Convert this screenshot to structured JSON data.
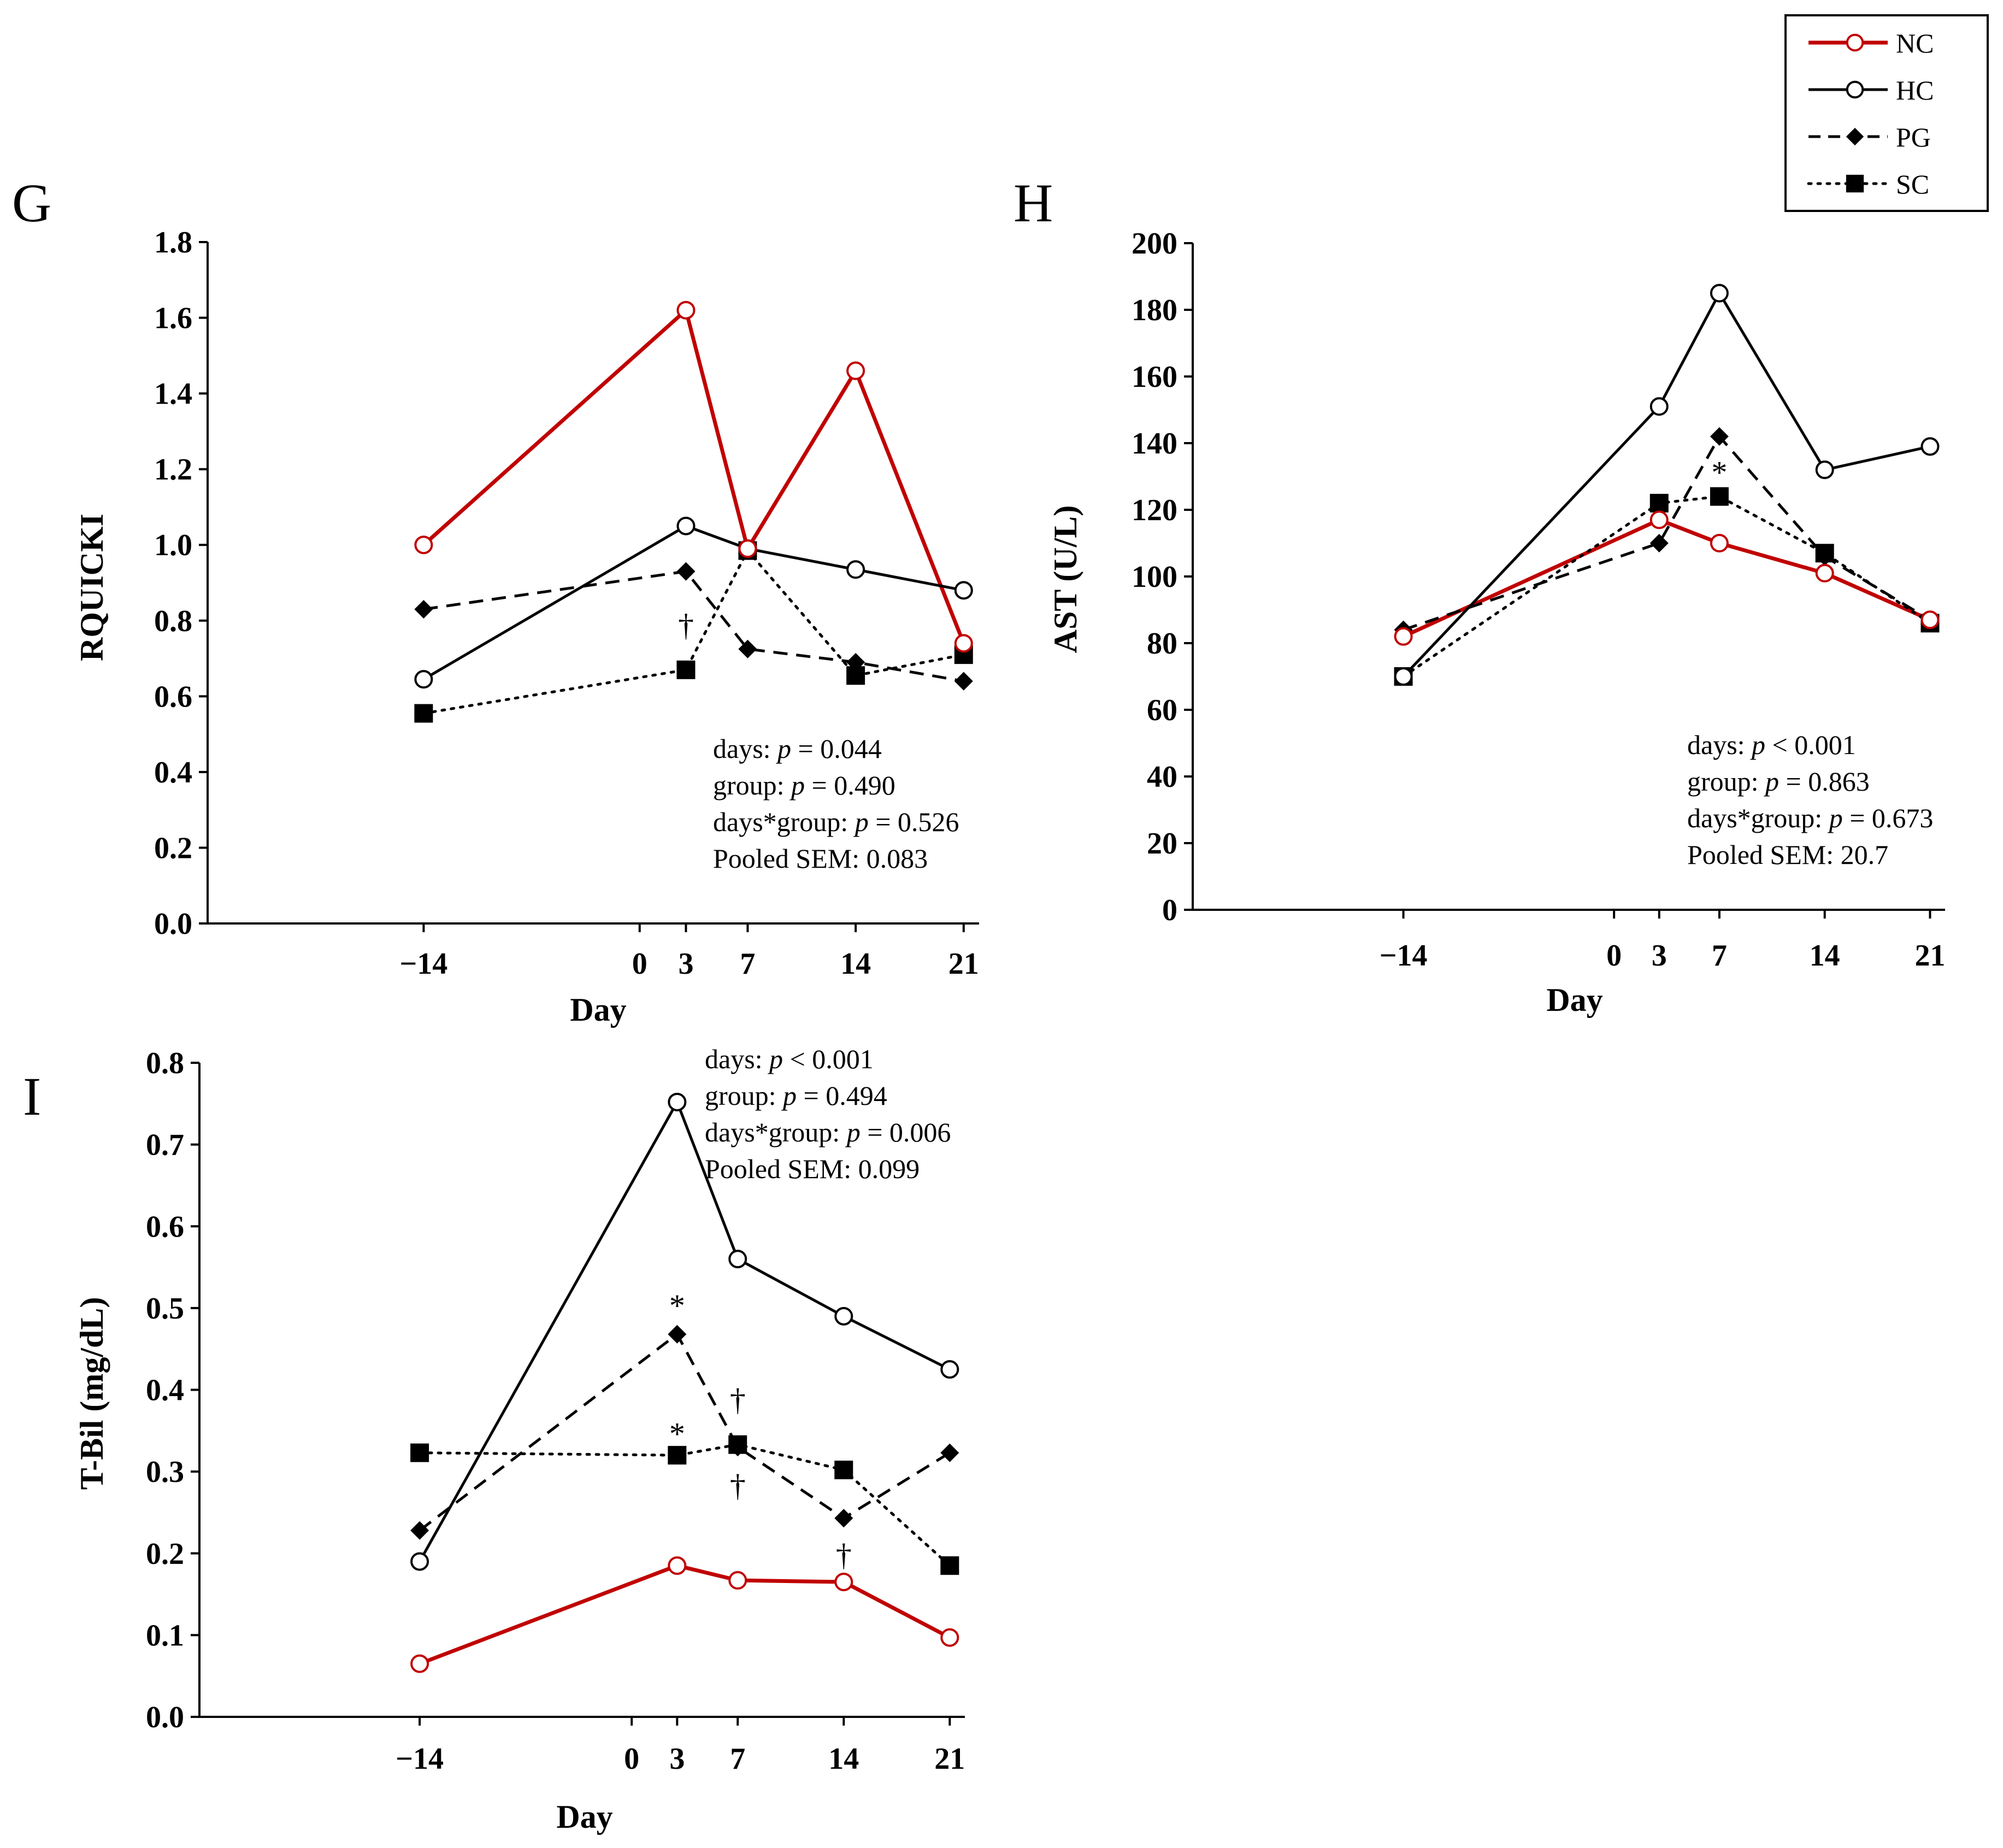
{
  "colors": {
    "NC": "#c00000",
    "HC": "#000000",
    "PG": "#000000",
    "SC": "#000000",
    "background": "#ffffff"
  },
  "legend": {
    "entries": [
      {
        "key": "NC",
        "label": "NC",
        "marker": "open-circle",
        "line": "solid",
        "color": "#c00000"
      },
      {
        "key": "HC",
        "label": "HC",
        "marker": "open-circle",
        "line": "solid",
        "color": "#000000"
      },
      {
        "key": "PG",
        "label": "PG",
        "marker": "diamond",
        "line": "dashed",
        "color": "#000000"
      },
      {
        "key": "SC",
        "label": "SC",
        "marker": "square",
        "line": "dotted",
        "color": "#000000"
      }
    ]
  },
  "chart_data": [
    {
      "id": "G",
      "type": "line",
      "panel_label": "G",
      "xlabel": "Day",
      "ylabel": "RQUICKI",
      "x": [
        -14,
        3,
        7,
        14,
        21
      ],
      "xticks": [
        -14,
        0,
        3,
        7,
        14,
        21
      ],
      "xtick_labels": [
        "−14",
        "0",
        "3",
        "7",
        "14",
        "21"
      ],
      "xlim": [
        -28,
        22
      ],
      "ylim": [
        0,
        1.8
      ],
      "yticks": [
        0,
        0.2,
        0.4,
        0.6,
        0.8,
        1.0,
        1.2,
        1.4,
        1.6,
        1.8
      ],
      "ytick_labels": [
        "0.0",
        "0.2",
        "0.4",
        "0.6",
        "0.8",
        "1.0",
        "1.2",
        "1.4",
        "1.6",
        "1.8"
      ],
      "series": [
        {
          "name": "NC",
          "values": [
            1.0,
            1.62,
            0.99,
            1.46,
            0.74
          ]
        },
        {
          "name": "HC",
          "values": [
            0.645,
            1.05,
            0.99,
            0.935,
            0.88
          ]
        },
        {
          "name": "PG",
          "values": [
            0.83,
            0.93,
            0.725,
            0.69,
            0.64
          ]
        },
        {
          "name": "SC",
          "values": [
            0.555,
            0.67,
            0.985,
            0.655,
            0.71
          ]
        }
      ],
      "stats": [
        "days: p = 0.044",
        "group: p = 0.490",
        "days*group: p = 0.526",
        "Pooled SEM: 0.083"
      ],
      "annotations": [
        {
          "text": "†",
          "x": 3,
          "y": 0.76
        }
      ]
    },
    {
      "id": "H",
      "type": "line",
      "panel_label": "H",
      "xlabel": "Day",
      "ylabel": "AST (U/L)",
      "x": [
        -14,
        3,
        7,
        14,
        21
      ],
      "xticks": [
        -14,
        0,
        3,
        7,
        14,
        21
      ],
      "xtick_labels": [
        "−14",
        "0",
        "3",
        "7",
        "14",
        "21"
      ],
      "xlim": [
        -28,
        22
      ],
      "ylim": [
        0,
        200
      ],
      "yticks": [
        0,
        20,
        40,
        60,
        80,
        100,
        120,
        140,
        160,
        180,
        200
      ],
      "ytick_labels": [
        "0",
        "20",
        "40",
        "60",
        "80",
        "100",
        "120",
        "140",
        "160",
        "180",
        "200"
      ],
      "series": [
        {
          "name": "NC",
          "values": [
            82,
            117,
            110,
            101,
            87
          ]
        },
        {
          "name": "HC",
          "values": [
            70,
            151,
            185,
            132,
            139
          ]
        },
        {
          "name": "PG",
          "values": [
            84,
            110,
            142,
            106,
            87
          ]
        },
        {
          "name": "SC",
          "values": [
            70,
            122,
            124,
            107,
            86
          ]
        }
      ],
      "stats": [
        "days: p < 0.001",
        "group: p = 0.863",
        "days*group: p = 0.673",
        "Pooled SEM: 20.7"
      ],
      "annotations": [
        {
          "text": "*",
          "x": 7,
          "y": 128
        }
      ]
    },
    {
      "id": "I",
      "type": "line",
      "panel_label": "I",
      "xlabel": "Day",
      "ylabel": "T-Bil (mg/dL)",
      "x": [
        -14,
        3,
        7,
        14,
        21
      ],
      "xticks": [
        -14,
        0,
        3,
        7,
        14,
        21
      ],
      "xtick_labels": [
        "−14",
        "0",
        "3",
        "7",
        "14",
        "21"
      ],
      "xlim": [
        -28,
        22
      ],
      "ylim": [
        0,
        0.8
      ],
      "yticks": [
        0,
        0.1,
        0.2,
        0.3,
        0.4,
        0.5,
        0.6,
        0.7,
        0.8
      ],
      "ytick_labels": [
        "0.0",
        "0.1",
        "0.2",
        "0.3",
        "0.4",
        "0.5",
        "0.6",
        "0.7",
        "0.8"
      ],
      "series": [
        {
          "name": "NC",
          "values": [
            0.065,
            0.185,
            0.167,
            0.165,
            0.097
          ]
        },
        {
          "name": "HC",
          "values": [
            0.19,
            0.752,
            0.56,
            0.49,
            0.425
          ]
        },
        {
          "name": "PG",
          "values": [
            0.228,
            0.468,
            0.33,
            0.243,
            0.323
          ]
        },
        {
          "name": "SC",
          "values": [
            0.323,
            0.32,
            0.333,
            0.302,
            0.185
          ]
        }
      ],
      "stats": [
        "days: p < 0.001",
        "group: p = 0.494",
        "days*group: p = 0.006",
        "Pooled SEM: 0.099"
      ],
      "annotations": [
        {
          "text": "*",
          "x": 3,
          "y": 0.49
        },
        {
          "text": "*",
          "x": 3,
          "y": 0.333
        },
        {
          "text": "†",
          "x": 7,
          "y": 0.375
        },
        {
          "text": "†",
          "x": 7,
          "y": 0.27
        },
        {
          "text": "†",
          "x": 14,
          "y": 0.185
        }
      ]
    }
  ]
}
